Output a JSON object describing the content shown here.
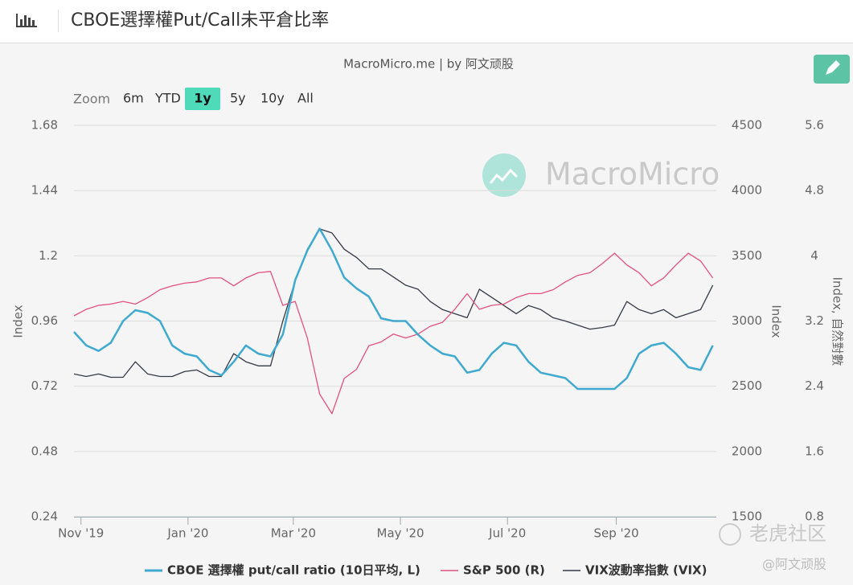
{
  "header": {
    "title": "CBOE選擇權Put/Call未平倉比率"
  },
  "toolbar": {
    "zoom_label": "Zoom",
    "buttons": [
      "6m",
      "YTD",
      "1y",
      "5y",
      "10y",
      "All"
    ],
    "selected": 2
  },
  "footer": {
    "brand": "老虎社区",
    "author": "@阿文顽股"
  },
  "chart_data": {
    "type": "line",
    "subtitle": "MacroMicro.me | by 阿文顽股",
    "watermark": "MacroMicro",
    "x": [
      "2019-10-28",
      "2019-11-04",
      "2019-11-11",
      "2019-11-18",
      "2019-11-25",
      "2019-12-02",
      "2019-12-09",
      "2019-12-16",
      "2019-12-23",
      "2019-12-30",
      "2020-01-06",
      "2020-01-13",
      "2020-01-20",
      "2020-01-27",
      "2020-02-03",
      "2020-02-10",
      "2020-02-17",
      "2020-02-24",
      "2020-03-02",
      "2020-03-09",
      "2020-03-16",
      "2020-03-23",
      "2020-03-30",
      "2020-04-06",
      "2020-04-13",
      "2020-04-20",
      "2020-04-27",
      "2020-05-04",
      "2020-05-11",
      "2020-05-18",
      "2020-05-25",
      "2020-06-01",
      "2020-06-08",
      "2020-06-15",
      "2020-06-22",
      "2020-06-29",
      "2020-07-06",
      "2020-07-13",
      "2020-07-20",
      "2020-07-27",
      "2020-08-03",
      "2020-08-10",
      "2020-08-17",
      "2020-08-24",
      "2020-08-31",
      "2020-09-07",
      "2020-09-14",
      "2020-09-21",
      "2020-09-28",
      "2020-10-05",
      "2020-10-12",
      "2020-10-19",
      "2020-10-26"
    ],
    "xlim": [
      "2019-10-28",
      "2020-10-28"
    ],
    "xticks": [
      {
        "value": "2019-11-01",
        "label": "Nov '19"
      },
      {
        "value": "2020-01-01",
        "label": "Jan '20"
      },
      {
        "value": "2020-03-01",
        "label": "Mar '20"
      },
      {
        "value": "2020-05-01",
        "label": "May '20"
      },
      {
        "value": "2020-07-01",
        "label": "Jul '20"
      },
      {
        "value": "2020-09-01",
        "label": "Sep '20"
      }
    ],
    "ylabel": "Index",
    "ylim": [
      0.24,
      1.68
    ],
    "yticks": [
      0.24,
      0.48,
      0.72,
      0.96,
      1.2,
      1.44,
      1.68
    ],
    "y2label": "Index",
    "y2lim": [
      1500,
      4500
    ],
    "y2ticks": [
      1500,
      2000,
      2500,
      3000,
      3500,
      4000,
      4500
    ],
    "y3label": "Index, 自然對數",
    "y3lim": [
      0.8,
      5.6
    ],
    "y3ticks": [
      0.8,
      1.6,
      2.4,
      3.2,
      4,
      4.8,
      5.6
    ],
    "grid": true,
    "series": [
      {
        "name": "CBOE 選擇權 put/call ratio (10日平均, L)",
        "color": "#3fa9cf",
        "axis": "y",
        "values": [
          0.92,
          0.87,
          0.85,
          0.88,
          0.96,
          1.0,
          0.99,
          0.96,
          0.87,
          0.84,
          0.83,
          0.78,
          0.76,
          0.81,
          0.87,
          0.84,
          0.83,
          0.91,
          1.11,
          1.22,
          1.3,
          1.22,
          1.12,
          1.08,
          1.05,
          0.97,
          0.96,
          0.96,
          0.91,
          0.87,
          0.84,
          0.83,
          0.77,
          0.78,
          0.84,
          0.88,
          0.87,
          0.81,
          0.77,
          0.76,
          0.75,
          0.71,
          0.71,
          0.71,
          0.71,
          0.75,
          0.84,
          0.87,
          0.88,
          0.84,
          0.79,
          0.78,
          0.87
        ]
      },
      {
        "name": "S&P 500 (R)",
        "color": "#e2517f",
        "axis": "y2",
        "values": [
          3040,
          3090,
          3120,
          3130,
          3150,
          3130,
          3180,
          3240,
          3270,
          3290,
          3300,
          3330,
          3330,
          3270,
          3330,
          3370,
          3380,
          3120,
          3150,
          2870,
          2440,
          2290,
          2560,
          2630,
          2810,
          2840,
          2900,
          2870,
          2900,
          2960,
          2990,
          3090,
          3210,
          3090,
          3120,
          3130,
          3180,
          3210,
          3210,
          3240,
          3300,
          3350,
          3370,
          3440,
          3520,
          3430,
          3370,
          3270,
          3330,
          3430,
          3520,
          3460,
          3330
        ]
      },
      {
        "name": "VIX波動率指數 (VIX)",
        "color": "#353a45",
        "axis": "y3",
        "values": [
          2.55,
          2.52,
          2.55,
          2.51,
          2.51,
          2.7,
          2.55,
          2.52,
          2.52,
          2.58,
          2.6,
          2.52,
          2.52,
          2.8,
          2.7,
          2.65,
          2.65,
          3.2,
          3.69,
          4.08,
          4.33,
          4.28,
          4.08,
          3.98,
          3.84,
          3.84,
          3.74,
          3.64,
          3.59,
          3.44,
          3.34,
          3.29,
          3.24,
          3.59,
          3.49,
          3.39,
          3.29,
          3.39,
          3.34,
          3.24,
          3.2,
          3.15,
          3.1,
          3.12,
          3.15,
          3.44,
          3.34,
          3.29,
          3.34,
          3.24,
          3.29,
          3.34,
          3.64
        ]
      }
    ]
  }
}
